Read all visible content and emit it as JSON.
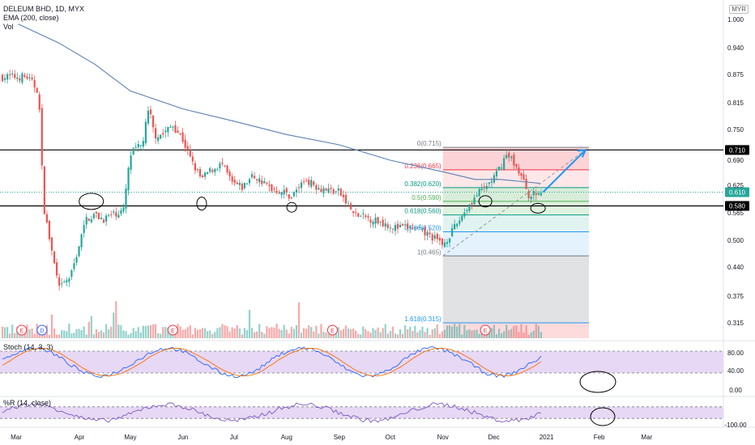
{
  "header": {
    "symbol_line": "DELEUM BHD, 1D, MYX",
    "ema_label": "EMA (200, close)",
    "vol_label": "Vol",
    "currency": "MYR"
  },
  "panes": {
    "stoch_label": "Stoch (14, 3, 3)",
    "wr_label": "%R (14, close)"
  },
  "chart_data": {
    "type": "candlestick",
    "title": "DELEUM BHD, 1D, MYX",
    "x_ticks": [
      "Mar",
      "Apr",
      "May",
      "Jun",
      "Jul",
      "Aug",
      "Sep",
      "Oct",
      "Nov",
      "Dec",
      "2021",
      "Feb",
      "Mar"
    ],
    "y_ticks": [
      "1.000",
      "0.940",
      "0.875",
      "0.815",
      "0.750",
      "0.690",
      "0.625",
      "0.565",
      "0.500",
      "0.440",
      "0.375",
      "0.315"
    ],
    "ylim": [
      0.285,
      1.01
    ],
    "price_axis_scale": "log-like (as shown)",
    "price_path": [
      [
        "2020-03-01",
        0.87
      ],
      [
        "2020-03-08",
        0.84
      ],
      [
        "2020-03-11",
        0.58
      ],
      [
        "2020-03-15",
        0.49
      ],
      [
        "2020-03-20",
        0.39
      ],
      [
        "2020-03-27",
        0.42
      ],
      [
        "2020-04-05",
        0.55
      ],
      [
        "2020-04-10",
        0.56
      ],
      [
        "2020-04-15",
        0.55
      ],
      [
        "2020-04-20",
        0.56
      ],
      [
        "2020-04-27",
        0.57
      ],
      [
        "2020-05-01",
        0.7
      ],
      [
        "2020-05-08",
        0.72
      ],
      [
        "2020-05-12",
        0.8
      ],
      [
        "2020-05-15",
        0.74
      ],
      [
        "2020-05-20",
        0.74
      ],
      [
        "2020-05-26",
        0.76
      ],
      [
        "2020-06-01",
        0.73
      ],
      [
        "2020-06-08",
        0.67
      ],
      [
        "2020-06-12",
        0.64
      ],
      [
        "2020-06-16",
        0.66
      ],
      [
        "2020-06-24",
        0.68
      ],
      [
        "2020-06-30",
        0.63
      ],
      [
        "2020-07-06",
        0.62
      ],
      [
        "2020-07-12",
        0.65
      ],
      [
        "2020-07-22",
        0.62
      ],
      [
        "2020-07-30",
        0.61
      ],
      [
        "2020-08-04",
        0.6
      ],
      [
        "2020-08-12",
        0.64
      ],
      [
        "2020-08-20",
        0.62
      ],
      [
        "2020-09-01",
        0.61
      ],
      [
        "2020-09-10",
        0.56
      ],
      [
        "2020-09-20",
        0.55
      ],
      [
        "2020-09-28",
        0.54
      ],
      [
        "2020-10-04",
        0.53
      ],
      [
        "2020-10-14",
        0.53
      ],
      [
        "2020-10-25",
        0.51
      ],
      [
        "2020-11-01",
        0.49
      ],
      [
        "2020-11-08",
        0.53
      ],
      [
        "2020-11-14",
        0.57
      ],
      [
        "2020-11-20",
        0.6
      ],
      [
        "2020-11-26",
        0.62
      ],
      [
        "2020-12-02",
        0.65
      ],
      [
        "2020-12-08",
        0.7
      ],
      [
        "2020-12-12",
        0.69
      ],
      [
        "2020-12-18",
        0.64
      ],
      [
        "2020-12-22",
        0.6
      ],
      [
        "2020-12-28",
        0.61
      ]
    ],
    "ema200": [
      [
        "2020-02-25",
        0.99
      ],
      [
        "2020-03-20",
        0.95
      ],
      [
        "2020-04-10",
        0.9
      ],
      [
        "2020-05-01",
        0.84
      ],
      [
        "2020-06-01",
        0.8
      ],
      [
        "2020-07-01",
        0.77
      ],
      [
        "2020-08-01",
        0.74
      ],
      [
        "2020-09-01",
        0.72
      ],
      [
        "2020-10-01",
        0.69
      ],
      [
        "2020-11-01",
        0.66
      ],
      [
        "2020-11-20",
        0.64
      ],
      [
        "2020-12-05",
        0.64
      ],
      [
        "2020-12-28",
        0.63
      ]
    ],
    "horizontal_lines": [
      {
        "value": 0.71,
        "label": "0.710"
      },
      {
        "value": 0.58,
        "label": "0.580"
      }
    ],
    "current_price": {
      "value": 0.61,
      "label": "0.610",
      "color": "#26a69a"
    },
    "fib_levels": [
      {
        "ratio": "0",
        "price": "0.715",
        "text": "0(0.715)",
        "color": "#787b86"
      },
      {
        "ratio": "0.236",
        "price": "0.665",
        "text": "0.236(0.665)",
        "color": "#f23645"
      },
      {
        "ratio": "0.382",
        "price": "0.620",
        "text": "0.382(0.620)",
        "color": "#089981"
      },
      {
        "ratio": "0.5",
        "price": "0.590",
        "text": "0.5(0.590)",
        "color": "#4caf50"
      },
      {
        "ratio": "0.618",
        "price": "0.560",
        "text": "0.618(0.560)",
        "color": "#089981"
      },
      {
        "ratio": "0.786",
        "price": "0.520",
        "text": "0.786(0.520)",
        "color": "#2196f3"
      },
      {
        "ratio": "1",
        "price": "0.465",
        "text": "1(0.465)",
        "color": "#787b86"
      },
      {
        "ratio": "1.618",
        "price": "0.315",
        "text": "1.618(0.315)",
        "color": "#2196f3"
      }
    ],
    "projection_target": {
      "date": "2021-01-24",
      "price": 0.71
    },
    "event_markers": [
      {
        "date": "2020-02-27",
        "text": "E"
      },
      {
        "date": "2020-03-10",
        "text": "D"
      },
      {
        "date": "2020-05-26",
        "text": "E"
      },
      {
        "date": "2020-08-28",
        "text": "E"
      },
      {
        "date": "2020-11-26",
        "text": "E"
      }
    ],
    "stoch": {
      "label": "Stoch (14, 3, 3)",
      "y_ticks": [
        "80.00",
        "40.00",
        "0.00"
      ],
      "upper_band": 80,
      "lower_band": 20,
      "k_color": "#2962ff",
      "d_color": "#ff6d00"
    },
    "williams_r": {
      "label": "%R (14, close)",
      "y_ticks": [
        "-100.00"
      ],
      "upper_band": -20,
      "lower_band": -80,
      "color": "#7e57c2"
    },
    "colors": {
      "up": "#26a69a",
      "down": "#ef5350",
      "ema": "#5b7fb4",
      "band": "#e7d8f5"
    }
  }
}
